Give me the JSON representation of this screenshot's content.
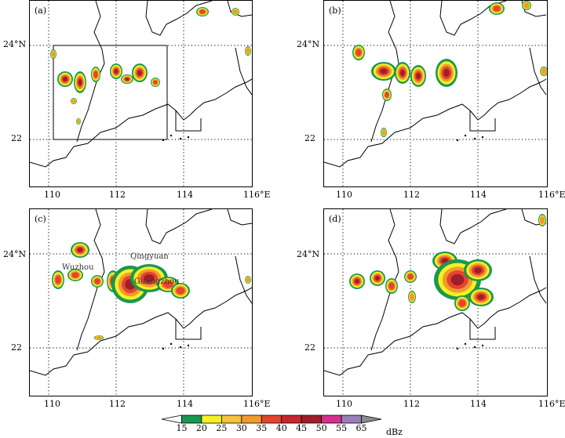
{
  "panels": [
    {
      "label": "(a)"
    },
    {
      "label": "(b)"
    },
    {
      "label": "(c)",
      "cities": [
        "Wuzhou",
        "Qingyuan",
        "Guangzhou"
      ]
    },
    {
      "label": "(d)"
    }
  ],
  "lat_labels": [
    "24°N",
    "22"
  ],
  "lon_labels": [
    "110",
    "112",
    "114",
    "116°E"
  ],
  "colorbar": {
    "ticks": [
      "15",
      "20",
      "25",
      "30",
      "35",
      "40",
      "45",
      "50",
      "55",
      "65"
    ],
    "unit": "dBz",
    "colors": [
      "#ffffff",
      "#1a9850",
      "#f6f024",
      "#f7c23d",
      "#f29a2e",
      "#e3452f",
      "#c8262f",
      "#9e1e2a",
      "#d6308f",
      "#9b7fb8",
      "#8c8c8c"
    ]
  }
}
